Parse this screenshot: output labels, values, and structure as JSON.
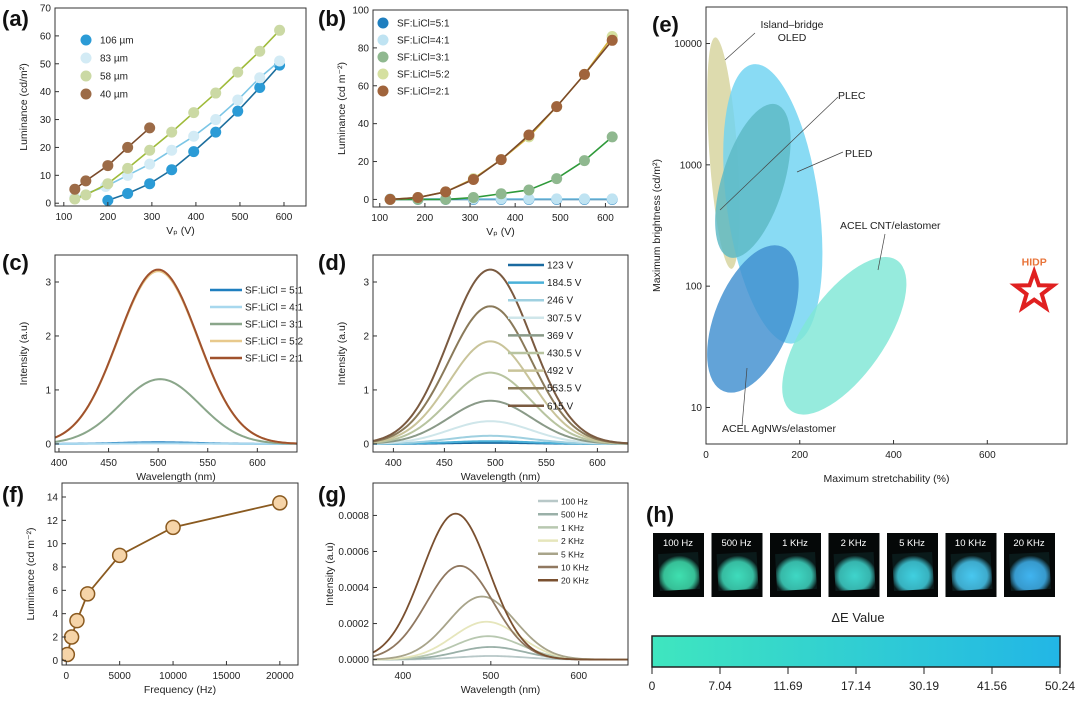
{
  "chart_data": [
    {
      "panel": "(a)",
      "type": "scatter",
      "xlabel": "Vₚ (V)",
      "ylabel": "Luminance (cd/m²)",
      "xlim": [
        80,
        650
      ],
      "ylim": [
        -1,
        70
      ],
      "xticks": [
        "100",
        "200",
        "300",
        "400",
        "500",
        "600"
      ],
      "yticks": [
        "0",
        "10",
        "20",
        "30",
        "40",
        "50",
        "60",
        "70"
      ],
      "legend": "top-left",
      "series": [
        {
          "name": "106 µm",
          "color": "#2b9bd6",
          "fit_color": "#1d6f9e",
          "x": [
            200,
            245,
            295,
            345,
            395,
            445,
            495,
            545,
            590
          ],
          "y": [
            1,
            3.5,
            7,
            12,
            18.5,
            25.5,
            33,
            41.5,
            49.5
          ]
        },
        {
          "name": "83 µm",
          "color": "#d3ebf5",
          "fit_color": "#7cc6e6",
          "x": [
            125,
            195,
            245,
            295,
            345,
            395,
            445,
            495,
            545,
            590
          ],
          "y": [
            2,
            6,
            10,
            14,
            19,
            24,
            30,
            37,
            45,
            51
          ]
        },
        {
          "name": "58 µm",
          "color": "#cbd9a4",
          "fit_color": "#9fbb3a",
          "x": [
            125,
            150,
            200,
            245,
            295,
            345,
            395,
            445,
            495,
            545,
            590
          ],
          "y": [
            1.5,
            3,
            7,
            12.5,
            19,
            25.5,
            32.5,
            39.5,
            47,
            54.5,
            62
          ]
        },
        {
          "name": "40 µm",
          "color": "#9c6b47",
          "fit_color": "#7a4a2a",
          "x": [
            125,
            150,
            200,
            245,
            295
          ],
          "y": [
            5,
            8,
            13.5,
            20,
            27
          ]
        }
      ]
    },
    {
      "panel": "(b)",
      "type": "scatter",
      "xlabel": "Vₚ (V)",
      "ylabel": "Luminance (cd m⁻²)",
      "xlim": [
        85,
        650
      ],
      "ylim": [
        -4,
        100
      ],
      "xticks": [
        "100",
        "200",
        "300",
        "400",
        "500",
        "600"
      ],
      "yticks": [
        "0",
        "20",
        "40",
        "60",
        "80",
        "100"
      ],
      "legend": "top-left",
      "series": [
        {
          "name": "SF:LiCl=5:1",
          "color": "#1f7fbf",
          "fit_color": "#1a6a9e",
          "x": [
            123,
            184.5,
            246,
            307.5,
            369,
            430.5,
            492,
            553.5,
            615
          ],
          "y": [
            0,
            0,
            0,
            0,
            0,
            0,
            0,
            0,
            0
          ]
        },
        {
          "name": "SF:LiCl=4:1",
          "color": "#bfe3f2",
          "fit_color": "#8fcbe6",
          "x": [
            123,
            184.5,
            246,
            307.5,
            369,
            430.5,
            492,
            553.5,
            615
          ],
          "y": [
            0.3,
            0.3,
            0.3,
            0.3,
            0.3,
            0.3,
            0.3,
            0.3,
            0.3
          ]
        },
        {
          "name": "SF:LiCl=3:1",
          "color": "#8fb88f",
          "fit_color": "#2f9a3a",
          "x": [
            123,
            184.5,
            246,
            307.5,
            369,
            430.5,
            492,
            553.5,
            615
          ],
          "y": [
            0,
            0,
            0,
            1,
            3,
            5,
            11,
            20.5,
            33
          ]
        },
        {
          "name": "SF:LiCl=5:2",
          "color": "#d5e0a0",
          "fit_color": "#d4b03a",
          "x": [
            123,
            184.5,
            246,
            307.5,
            369,
            430.5,
            492,
            553.5,
            615
          ],
          "y": [
            0,
            1,
            4,
            11,
            21,
            33,
            49,
            66,
            86
          ]
        },
        {
          "name": "SF:LiCl=2:1",
          "color": "#a0643c",
          "fit_color": "#7a4a2a",
          "x": [
            123,
            184.5,
            246,
            307.5,
            369,
            430.5,
            492,
            553.5,
            615
          ],
          "y": [
            0,
            1,
            4,
            10.5,
            21,
            34,
            49,
            66,
            84
          ]
        }
      ]
    },
    {
      "panel": "(c)",
      "type": "line",
      "xlabel": "Wavelength  (nm)",
      "ylabel": "Intensity (a.u)",
      "xlim": [
        396,
        640
      ],
      "ylim": [
        -0.15,
        3.5
      ],
      "xticks": [
        "400",
        "450",
        "500",
        "550",
        "600"
      ],
      "yticks": [
        "0",
        "1",
        "2",
        "3"
      ],
      "legend": "top-right",
      "series": [
        {
          "name": "SF:LiCl = 5:1",
          "color": "#1f7fbf",
          "peak_wavelength": 500,
          "peak_intensity": 0.03,
          "fwhm_nm": 95
        },
        {
          "name": "SF:LiCl = 4:1",
          "color": "#a8d8ee",
          "peak_wavelength": 500,
          "peak_intensity": 0.01,
          "fwhm_nm": 95
        },
        {
          "name": "SF:LiCl = 3:1",
          "color": "#8aa68a",
          "peak_wavelength": 502,
          "peak_intensity": 1.2,
          "fwhm_nm": 95
        },
        {
          "name": "SF:LiCl = 5:2",
          "color": "#e8c98c",
          "peak_wavelength": 500,
          "peak_intensity": 3.2,
          "fwhm_nm": 95
        },
        {
          "name": "SF:LiCl = 2:1",
          "color": "#a0522d",
          "peak_wavelength": 500,
          "peak_intensity": 3.23,
          "fwhm_nm": 95
        }
      ]
    },
    {
      "panel": "(d)",
      "type": "line",
      "xlabel": "Wavelength (nm)",
      "ylabel": "Intensity (a.u)",
      "xlim": [
        380,
        630
      ],
      "ylim": [
        -0.15,
        3.5
      ],
      "xticks": [
        "400",
        "450",
        "500",
        "550",
        "600"
      ],
      "yticks": [
        "0",
        "1",
        "2",
        "3"
      ],
      "legend": "top-right",
      "series": [
        {
          "name": "123 V",
          "color": "#1a6aa0",
          "peak_wavelength": 495,
          "peak_intensity": 0.02,
          "fwhm_nm": 95
        },
        {
          "name": "184.5 V",
          "color": "#4ab0d8",
          "peak_wavelength": 495,
          "peak_intensity": 0.05,
          "fwhm_nm": 95
        },
        {
          "name": "246 V",
          "color": "#9fd0e0",
          "peak_wavelength": 495,
          "peak_intensity": 0.15,
          "fwhm_nm": 95
        },
        {
          "name": "307.5 V",
          "color": "#cfe6ea",
          "peak_wavelength": 495,
          "peak_intensity": 0.42,
          "fwhm_nm": 95
        },
        {
          "name": "369 V",
          "color": "#8a9a88",
          "peak_wavelength": 495,
          "peak_intensity": 0.8,
          "fwhm_nm": 95
        },
        {
          "name": "430.5 V",
          "color": "#b8c4a0",
          "peak_wavelength": 495,
          "peak_intensity": 1.32,
          "fwhm_nm": 95
        },
        {
          "name": "492 V",
          "color": "#c9c49a",
          "peak_wavelength": 495,
          "peak_intensity": 1.9,
          "fwhm_nm": 95
        },
        {
          "name": "553.5  V",
          "color": "#8a7a5a",
          "peak_wavelength": 495,
          "peak_intensity": 2.55,
          "fwhm_nm": 95
        },
        {
          "name": "615 V",
          "color": "#7a5a40",
          "peak_wavelength": 495,
          "peak_intensity": 3.23,
          "fwhm_nm": 95
        }
      ]
    },
    {
      "panel": "(e)",
      "type": "scatter",
      "xlabel": "Maximum stretchability (%)",
      "ylabel": "Maximum brightness (cd/m²)",
      "xlim": [
        0,
        770
      ],
      "ylim": [
        5,
        20000
      ],
      "ylog": true,
      "xticks": [
        "0",
        "200",
        "400",
        "600"
      ],
      "yticks": [
        "10",
        "100",
        "1000",
        "10000"
      ],
      "regions": [
        {
          "label": "Island–bridge",
          "label2": "OLED",
          "color": "#d6d39c",
          "stretch_range": [
            8,
            66
          ],
          "brightness_range": [
            130,
            12000
          ]
        },
        {
          "label": "PLED",
          "color": "#6fd3f2",
          "stretch_range": [
            45,
            240
          ],
          "brightness_range": [
            35,
            6500
          ]
        },
        {
          "label": "PLEC",
          "color": "#5bb8c4",
          "stretch_range": [
            30,
            170
          ],
          "brightness_range": [
            170,
            3200
          ]
        },
        {
          "label": "ACEL AgNWs/elastomer",
          "color": "#3f8fd0",
          "stretch_range": [
            10,
            190
          ],
          "brightness_range": [
            12,
            240
          ]
        },
        {
          "label": "ACEL CNT/elastomer",
          "color": "#7fe6d6",
          "stretch_range": [
            140,
            450
          ],
          "brightness_range": [
            8,
            190
          ]
        }
      ],
      "highlight": {
        "label": "HIDP",
        "stretchability": 700,
        "brightness": 90,
        "color": "#e02020",
        "label_color": "#e8743a",
        "marker": "star-outline"
      }
    },
    {
      "panel": "(f)",
      "type": "line",
      "xlabel": "Frequency (Hz)",
      "ylabel": "Luminance (cd m⁻²)",
      "xlim": [
        -400,
        21700
      ],
      "ylim": [
        -0.4,
        15.2
      ],
      "xticks": [
        "0",
        "5000",
        "10000",
        "15000",
        "20000"
      ],
      "yticks": [
        "0",
        "2",
        "4",
        "6",
        "8",
        "10",
        "12",
        "14"
      ],
      "series": [
        {
          "color": "#8a5a20",
          "marker_fill": "#f6d4a8",
          "x": [
            100,
            500,
            1000,
            2000,
            5000,
            10000,
            20000
          ],
          "y": [
            0.5,
            2.0,
            3.4,
            5.7,
            9.0,
            11.4,
            13.5
          ]
        }
      ]
    },
    {
      "panel": "(g)",
      "type": "line",
      "xlabel": "Wavelength (nm)",
      "ylabel": "Intensity (a.u)",
      "xlim": [
        366,
        656
      ],
      "ylim": [
        -3e-05,
        0.00098
      ],
      "xticks": [
        "400",
        "500",
        "600"
      ],
      "yticks": [
        "0.0000",
        "0.0002",
        "0.0004",
        "0.0006",
        "0.0008"
      ],
      "legend": "top-right",
      "series": [
        {
          "name": "100 Hz",
          "color": "#b8c8c8",
          "peak_wavelength": 500,
          "peak_intensity": 2e-05,
          "fwhm_nm": 90
        },
        {
          "name": "500 Hz",
          "color": "#9ab0a8",
          "peak_wavelength": 500,
          "peak_intensity": 7e-05,
          "fwhm_nm": 90
        },
        {
          "name": "1 KHz",
          "color": "#b8c8b0",
          "peak_wavelength": 497,
          "peak_intensity": 0.00013,
          "fwhm_nm": 90
        },
        {
          "name": "2 KHz",
          "color": "#e6e6bc",
          "peak_wavelength": 495,
          "peak_intensity": 0.00021,
          "fwhm_nm": 90
        },
        {
          "name": "5 KHz",
          "color": "#a8a48a",
          "peak_wavelength": 490,
          "peak_intensity": 0.00035,
          "fwhm_nm": 90
        },
        {
          "name": "10 KHz",
          "color": "#907860",
          "peak_wavelength": 465,
          "peak_intensity": 0.00052,
          "fwhm_nm": 90
        },
        {
          "name": "20 KHz",
          "color": "#7a5030",
          "peak_wavelength": 460,
          "peak_intensity": 0.00081,
          "fwhm_nm": 90
        }
      ]
    },
    {
      "panel": "(h)",
      "type": "heatmap",
      "photos": [
        {
          "label": "100 Hz",
          "color": "#3fe0b0"
        },
        {
          "label": "500 Hz",
          "color": "#3fdcbc"
        },
        {
          "label": "1 KHz",
          "color": "#3fd8c4"
        },
        {
          "label": "2 KHz",
          "color": "#3fd4cc"
        },
        {
          "label": "5 KHz",
          "color": "#40d0e0"
        },
        {
          "label": "10 KHz",
          "color": "#48c8f0"
        },
        {
          "label": "20 KHz",
          "color": "#40b4f0"
        }
      ],
      "colorbar_title": "ΔE  Value",
      "colorbar_colors": [
        "#3fe6bf",
        "#22b6e6"
      ],
      "colorbar_ticks": [
        "0",
        "7.04",
        "11.69",
        "17.14",
        "30.19",
        "41.56",
        "50.24"
      ]
    }
  ]
}
